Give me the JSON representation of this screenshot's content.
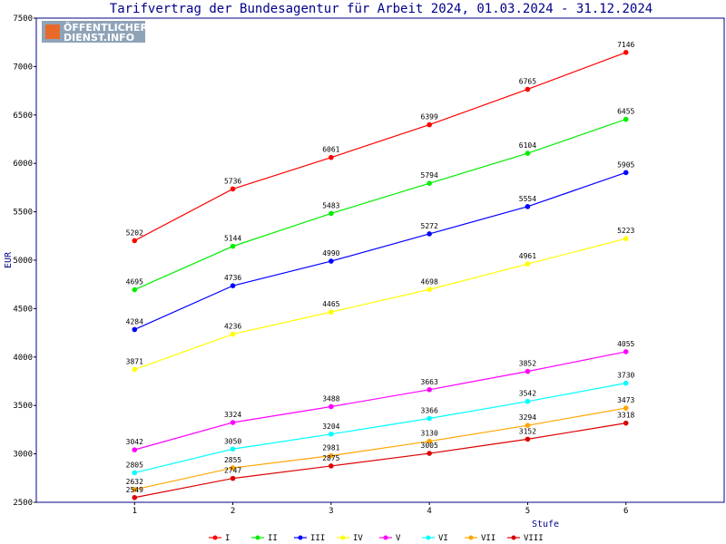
{
  "chart_data": {
    "type": "line",
    "title": "Tarifvertrag der Bundesagentur für Arbeit 2024, 01.03.2024 - 31.12.2024",
    "xlabel": "Stufe",
    "ylabel": "EUR",
    "x": [
      1,
      2,
      3,
      4,
      5,
      6
    ],
    "xlim": [
      0,
      7
    ],
    "ylim": [
      2500,
      7500
    ],
    "yticks": [
      2500,
      3000,
      3500,
      4000,
      4500,
      5000,
      5500,
      6000,
      6500,
      7000,
      7500
    ],
    "legend_position": "bottom",
    "series": [
      {
        "name": "I",
        "color": "#ff0000",
        "values": [
          5202,
          5736,
          6061,
          6399,
          6765,
          7146
        ]
      },
      {
        "name": "II",
        "color": "#00ee00",
        "values": [
          4695,
          5144,
          5483,
          5794,
          6104,
          6455
        ]
      },
      {
        "name": "III",
        "color": "#0000ff",
        "values": [
          4284,
          4736,
          4990,
          5272,
          5554,
          5905
        ]
      },
      {
        "name": "IV",
        "color": "#ffff00",
        "values": [
          3871,
          4236,
          4465,
          4698,
          4961,
          5223
        ]
      },
      {
        "name": "V",
        "color": "#ff00ff",
        "values": [
          3042,
          3324,
          3488,
          3663,
          3852,
          4055
        ]
      },
      {
        "name": "VI",
        "color": "#00ffff",
        "values": [
          2805,
          3050,
          3204,
          3366,
          3542,
          3730
        ]
      },
      {
        "name": "VII",
        "color": "#ffa500",
        "values": [
          2632,
          2855,
          2981,
          3130,
          3294,
          3473
        ]
      },
      {
        "name": "VIII",
        "color": "#dd0000",
        "values": [
          2549,
          2747,
          2875,
          3005,
          3152,
          3318
        ]
      }
    ]
  },
  "logo": {
    "line1": "ÖFFENTLICHER",
    "line2": "DIENST.INFO"
  }
}
